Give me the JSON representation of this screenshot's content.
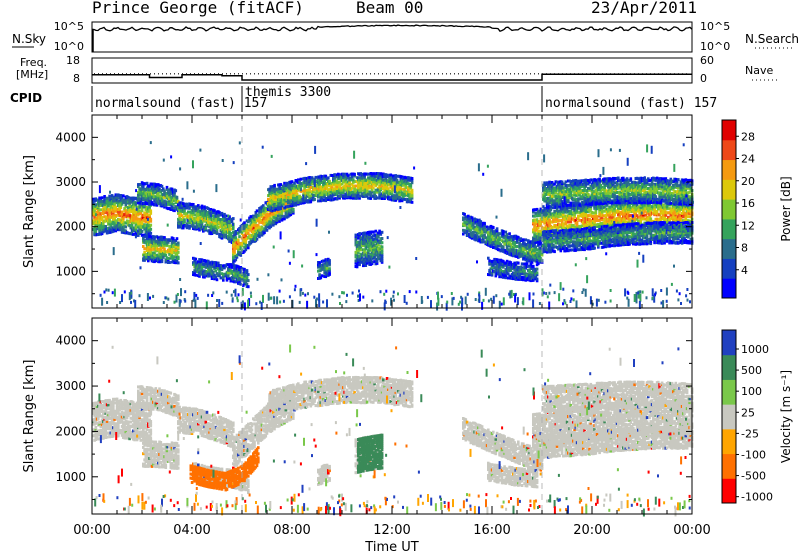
{
  "header": {
    "station": "Prince George (fitACF)",
    "beam": "Beam 00",
    "date": "23/Apr/2011"
  },
  "nsky_panel": {
    "left_label": "N.Sky",
    "left_ticks": [
      "10^5",
      "10^0"
    ],
    "right_label": "N.Search",
    "right_ticks": [
      "10^5",
      "10^0"
    ]
  },
  "freq_panel": {
    "left_label_1": "Freq.",
    "left_label_2": "[MHz]",
    "left_ticks": [
      "18",
      "8"
    ],
    "right_label": "Nave",
    "right_ticks": [
      "60",
      "0"
    ],
    "freq_steps": [
      {
        "start": 0.0,
        "end": 2.3,
        "mhz": 11.3
      },
      {
        "start": 2.3,
        "end": 3.6,
        "mhz": 10.2
      },
      {
        "start": 3.6,
        "end": 5.2,
        "mhz": 11.3
      },
      {
        "start": 5.2,
        "end": 6.0,
        "mhz": 10.9
      },
      {
        "start": 6.0,
        "end": 18.0,
        "mhz": 9.2
      },
      {
        "start": 18.0,
        "end": 24.0,
        "mhz": 11.5
      }
    ],
    "nave_level": 22
  },
  "cpid": {
    "label": "CPID",
    "segments": [
      {
        "start": 0,
        "label": "normalsound (fast) 157"
      },
      {
        "start": 6,
        "label": "themis 3300"
      },
      {
        "start": 18,
        "label": "normalsound (fast) 157"
      }
    ]
  },
  "chart_data": [
    {
      "type": "heatmap",
      "panel": "power",
      "ylabel": "Slant Range [km]",
      "yticks": [
        1000,
        2000,
        3000,
        4000
      ],
      "ylim": [
        180,
        4500
      ],
      "xlim": [
        0,
        24
      ],
      "colorbar_label": "Power [dB]",
      "colorbar_ticks": [
        "28",
        "24",
        "20",
        "16",
        "12",
        "8",
        "4"
      ],
      "colorbar_range": [
        0,
        30
      ],
      "colors": [
        "#0000ff",
        "#1540c0",
        "#2a6d8c",
        "#35a35c",
        "#7fc832",
        "#dcc80a",
        "#f59a10",
        "#ee4818",
        "#e00000"
      ],
      "echo_bands": [
        {
          "t": [
            0.0,
            0.9,
            1.8,
            2.3
          ],
          "r": [
            2200,
            2300,
            2200,
            2200
          ],
          "w": 420,
          "p": 24
        },
        {
          "t": [
            2.0,
            2.7,
            3.4
          ],
          "r": [
            1500,
            1480,
            1450
          ],
          "w": 260,
          "p": 20
        },
        {
          "t": [
            1.8,
            2.6,
            3.4
          ],
          "r": [
            2750,
            2700,
            2550
          ],
          "w": 220,
          "p": 14
        },
        {
          "t": [
            3.4,
            4.2,
            5.0,
            5.6
          ],
          "r": [
            2250,
            2200,
            2050,
            1900
          ],
          "w": 280,
          "p": 18
        },
        {
          "t": [
            4.0,
            4.8,
            5.6,
            6.2
          ],
          "r": [
            1100,
            1000,
            950,
            820
          ],
          "w": 160,
          "p": 12
        },
        {
          "t": [
            5.6,
            6.4,
            7.2,
            8.0
          ],
          "r": [
            1500,
            1950,
            2350,
            2600
          ],
          "w": 320,
          "p": 24
        },
        {
          "t": [
            7.0,
            8.5,
            10.0,
            11.5,
            12.8
          ],
          "r": [
            2600,
            2800,
            2900,
            2900,
            2800
          ],
          "w": 260,
          "p": 20
        },
        {
          "t": [
            10.5,
            11.0,
            11.6
          ],
          "r": [
            1450,
            1500,
            1550
          ],
          "w": 380,
          "p": 14
        },
        {
          "t": [
            9.0,
            9.5
          ],
          "r": [
            1000,
            1100
          ],
          "w": 200,
          "p": 12
        },
        {
          "t": [
            14.8,
            16.0,
            17.2,
            18.0
          ],
          "r": [
            2050,
            1750,
            1480,
            1350
          ],
          "w": 220,
          "p": 14
        },
        {
          "t": [
            15.8,
            16.8,
            17.8
          ],
          "r": [
            1100,
            1000,
            950
          ],
          "w": 160,
          "p": 10
        },
        {
          "t": [
            17.6,
            19.0,
            20.5,
            22.0,
            24.0
          ],
          "r": [
            2000,
            2100,
            2200,
            2250,
            2250
          ],
          "w": 340,
          "p": 24
        },
        {
          "t": [
            18.0,
            19.5,
            21.0,
            22.5,
            24.0
          ],
          "r": [
            2700,
            2750,
            2800,
            2800,
            2750
          ],
          "w": 260,
          "p": 16
        },
        {
          "t": [
            18.0,
            19.5,
            21.0,
            22.5,
            24.0
          ],
          "r": [
            1650,
            1700,
            1800,
            1850,
            1850
          ],
          "w": 220,
          "p": 12
        }
      ]
    },
    {
      "type": "heatmap",
      "panel": "velocity",
      "ylabel": "Slant Range [km]",
      "yticks": [
        1000,
        2000,
        3000,
        4000
      ],
      "ylim": [
        180,
        4500
      ],
      "xlim": [
        0,
        24
      ],
      "xticks": [
        "00:00",
        "04:00",
        "08:00",
        "12:00",
        "16:00",
        "20:00",
        "00:00"
      ],
      "xlabel": "Time UT",
      "colorbar_label": "Velocity [m s⁻¹]",
      "colorbar_ticks": [
        "1000",
        "500",
        "100",
        "25",
        "-25",
        "-100",
        "-500",
        "-1000"
      ],
      "colors": [
        "#2040c0",
        "#3a8a58",
        "#7ac84a",
        "#c8c8c0",
        "#ffa500",
        "#ff7000",
        "#ff0000"
      ],
      "gs_color": "#c8c8c0",
      "features": [
        {
          "t": [
            3.9,
            4.6,
            5.3,
            6.0,
            6.6
          ],
          "r": [
            1050,
            950,
            880,
            1050,
            1450
          ],
          "w": 200,
          "vel": "-100"
        },
        {
          "t": [
            10.6,
            11.0,
            11.6
          ],
          "r": [
            1450,
            1500,
            1550
          ],
          "w": 380,
          "vel": "500"
        }
      ]
    }
  ],
  "axis": {
    "time_label": "Time UT"
  }
}
